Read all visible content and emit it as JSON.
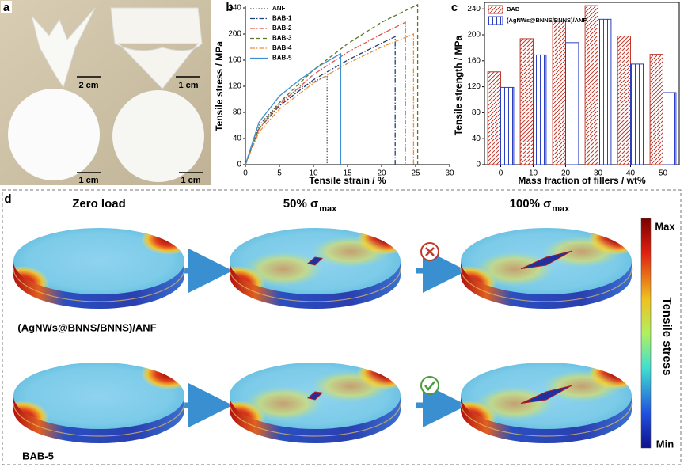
{
  "panels": [
    "a",
    "b",
    "c",
    "d"
  ],
  "photos": {
    "scale_labels": [
      "2 cm",
      "1 cm",
      "1 cm",
      "1 cm"
    ]
  },
  "chart_data": [
    {
      "type": "line",
      "xlabel": "Tensile strain / %",
      "ylabel": "Tensile stress / MPa",
      "xlim": [
        0,
        30
      ],
      "xticks": [
        0,
        5,
        10,
        15,
        20,
        25,
        30
      ],
      "ylim": [
        0,
        240
      ],
      "yticks": [
        0,
        40,
        80,
        120,
        160,
        200,
        240
      ],
      "legend": "upper-left",
      "series": [
        {
          "name": "ANF",
          "color": "#555555",
          "linestyle": "dotted",
          "x": [
            0,
            2,
            5,
            8,
            12,
            12
          ],
          "values": [
            0,
            60,
            95,
            118,
            136,
            0
          ]
        },
        {
          "name": "BAB-1",
          "color": "#1f3f7a",
          "linestyle": "dashdot",
          "x": [
            0,
            2,
            5,
            10,
            15,
            20,
            22,
            22
          ],
          "values": [
            0,
            55,
            90,
            130,
            160,
            186,
            196,
            0
          ]
        },
        {
          "name": "BAB-2",
          "color": "#e0554f",
          "linestyle": "dashdot",
          "x": [
            0,
            2,
            5,
            10,
            15,
            20,
            23.5,
            23.5
          ],
          "values": [
            0,
            55,
            92,
            138,
            172,
            200,
            218,
            0
          ]
        },
        {
          "name": "BAB-3",
          "color": "#5a7a2a",
          "linestyle": "dashed",
          "x": [
            0,
            2,
            5,
            10,
            15,
            20,
            25.3,
            25.3
          ],
          "values": [
            0,
            55,
            95,
            145,
            185,
            218,
            245,
            0
          ]
        },
        {
          "name": "BAB-4",
          "color": "#e8903a",
          "linestyle": "dashdot",
          "x": [
            0,
            2,
            5,
            10,
            15,
            20,
            24.7,
            24.7
          ],
          "values": [
            0,
            50,
            85,
            125,
            155,
            180,
            200,
            0
          ]
        },
        {
          "name": "BAB-5",
          "color": "#3f8fd0",
          "linestyle": "solid",
          "x": [
            0,
            2,
            5,
            8,
            11,
            14,
            14
          ],
          "values": [
            0,
            65,
            105,
            130,
            152,
            170,
            0
          ]
        }
      ]
    },
    {
      "type": "bar",
      "xlabel": "Mass fraction of fillers / wt%",
      "ylabel": "Tensile strength / MPa",
      "categories": [
        "0",
        "10",
        "20",
        "30",
        "40",
        "50"
      ],
      "ylim": [
        0,
        250
      ],
      "yticks": [
        0,
        40,
        80,
        120,
        160,
        200,
        240
      ],
      "legend": "upper-left",
      "series": [
        {
          "name": "BAB",
          "color": "#c0392b",
          "hatch": "diagonal",
          "values": [
            143,
            194,
            221,
            245,
            198,
            170
          ]
        },
        {
          "name": "(AgNWs@BNNS/BNNS)/ANF",
          "color": "#2b3fbf",
          "hatch": "vertical",
          "values": [
            119,
            169,
            188,
            224,
            155,
            111
          ]
        }
      ]
    }
  ],
  "simulation": {
    "columns": [
      {
        "text": "Zero load"
      },
      {
        "text": "50% σ",
        "sub": "max"
      },
      {
        "text": "100% σ",
        "sub": "max"
      }
    ],
    "rows": [
      "(AgNWs@BNNS/BNNS)/ANF",
      "BAB-5"
    ],
    "colorbar": {
      "label": "Tensile stress",
      "max": "Max",
      "min": "Min"
    }
  }
}
